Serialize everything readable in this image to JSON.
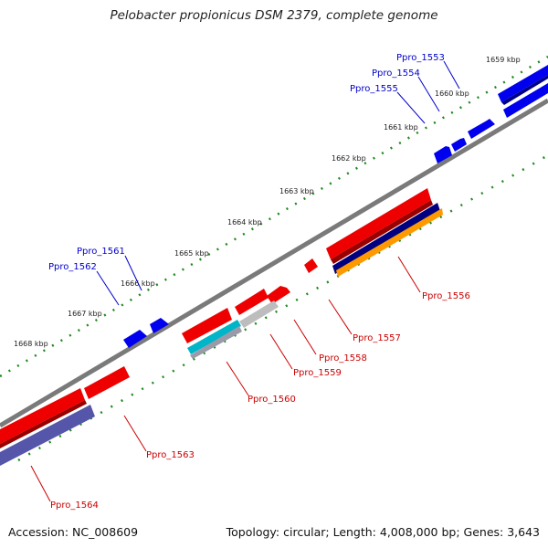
{
  "header": {
    "title": "Pelobacter propionicus DSM 2379, complete genome"
  },
  "footer": {
    "accession": "Accession: NC_008609",
    "summary": "Topology: circular; Length: 4,008,000 bp; Genes: 3,643"
  },
  "colors": {
    "backbone": "#7a7a7a",
    "tick": "#1f8a1f",
    "gene_red": "#ee0000",
    "gene_blue": "#0000ee",
    "gene_navy": "#000080",
    "gene_orange": "#ff9900",
    "gene_grey": "#bdbdbd",
    "gene_cyan": "#00b5c8",
    "gene_slate": "#5555aa",
    "label_blue": "#0000cc",
    "label_red": "#cc0000"
  },
  "scale_labels": [
    "1659 kbp",
    "1660 kbp",
    "1661 kbp",
    "1662 kbp",
    "1663 kbp",
    "1664 kbp",
    "1665 kbp",
    "1666 kbp",
    "1667 kbp",
    "1668 kbp"
  ],
  "gene_labels": {
    "top": [
      "Ppro_1553",
      "Ppro_1554",
      "Ppro_1555",
      "Ppro_1561",
      "Ppro_1562"
    ],
    "bottom": [
      "Ppro_1556",
      "Ppro_1557",
      "Ppro_1558",
      "Ppro_1559",
      "Ppro_1560",
      "Ppro_1563",
      "Ppro_1564"
    ]
  }
}
